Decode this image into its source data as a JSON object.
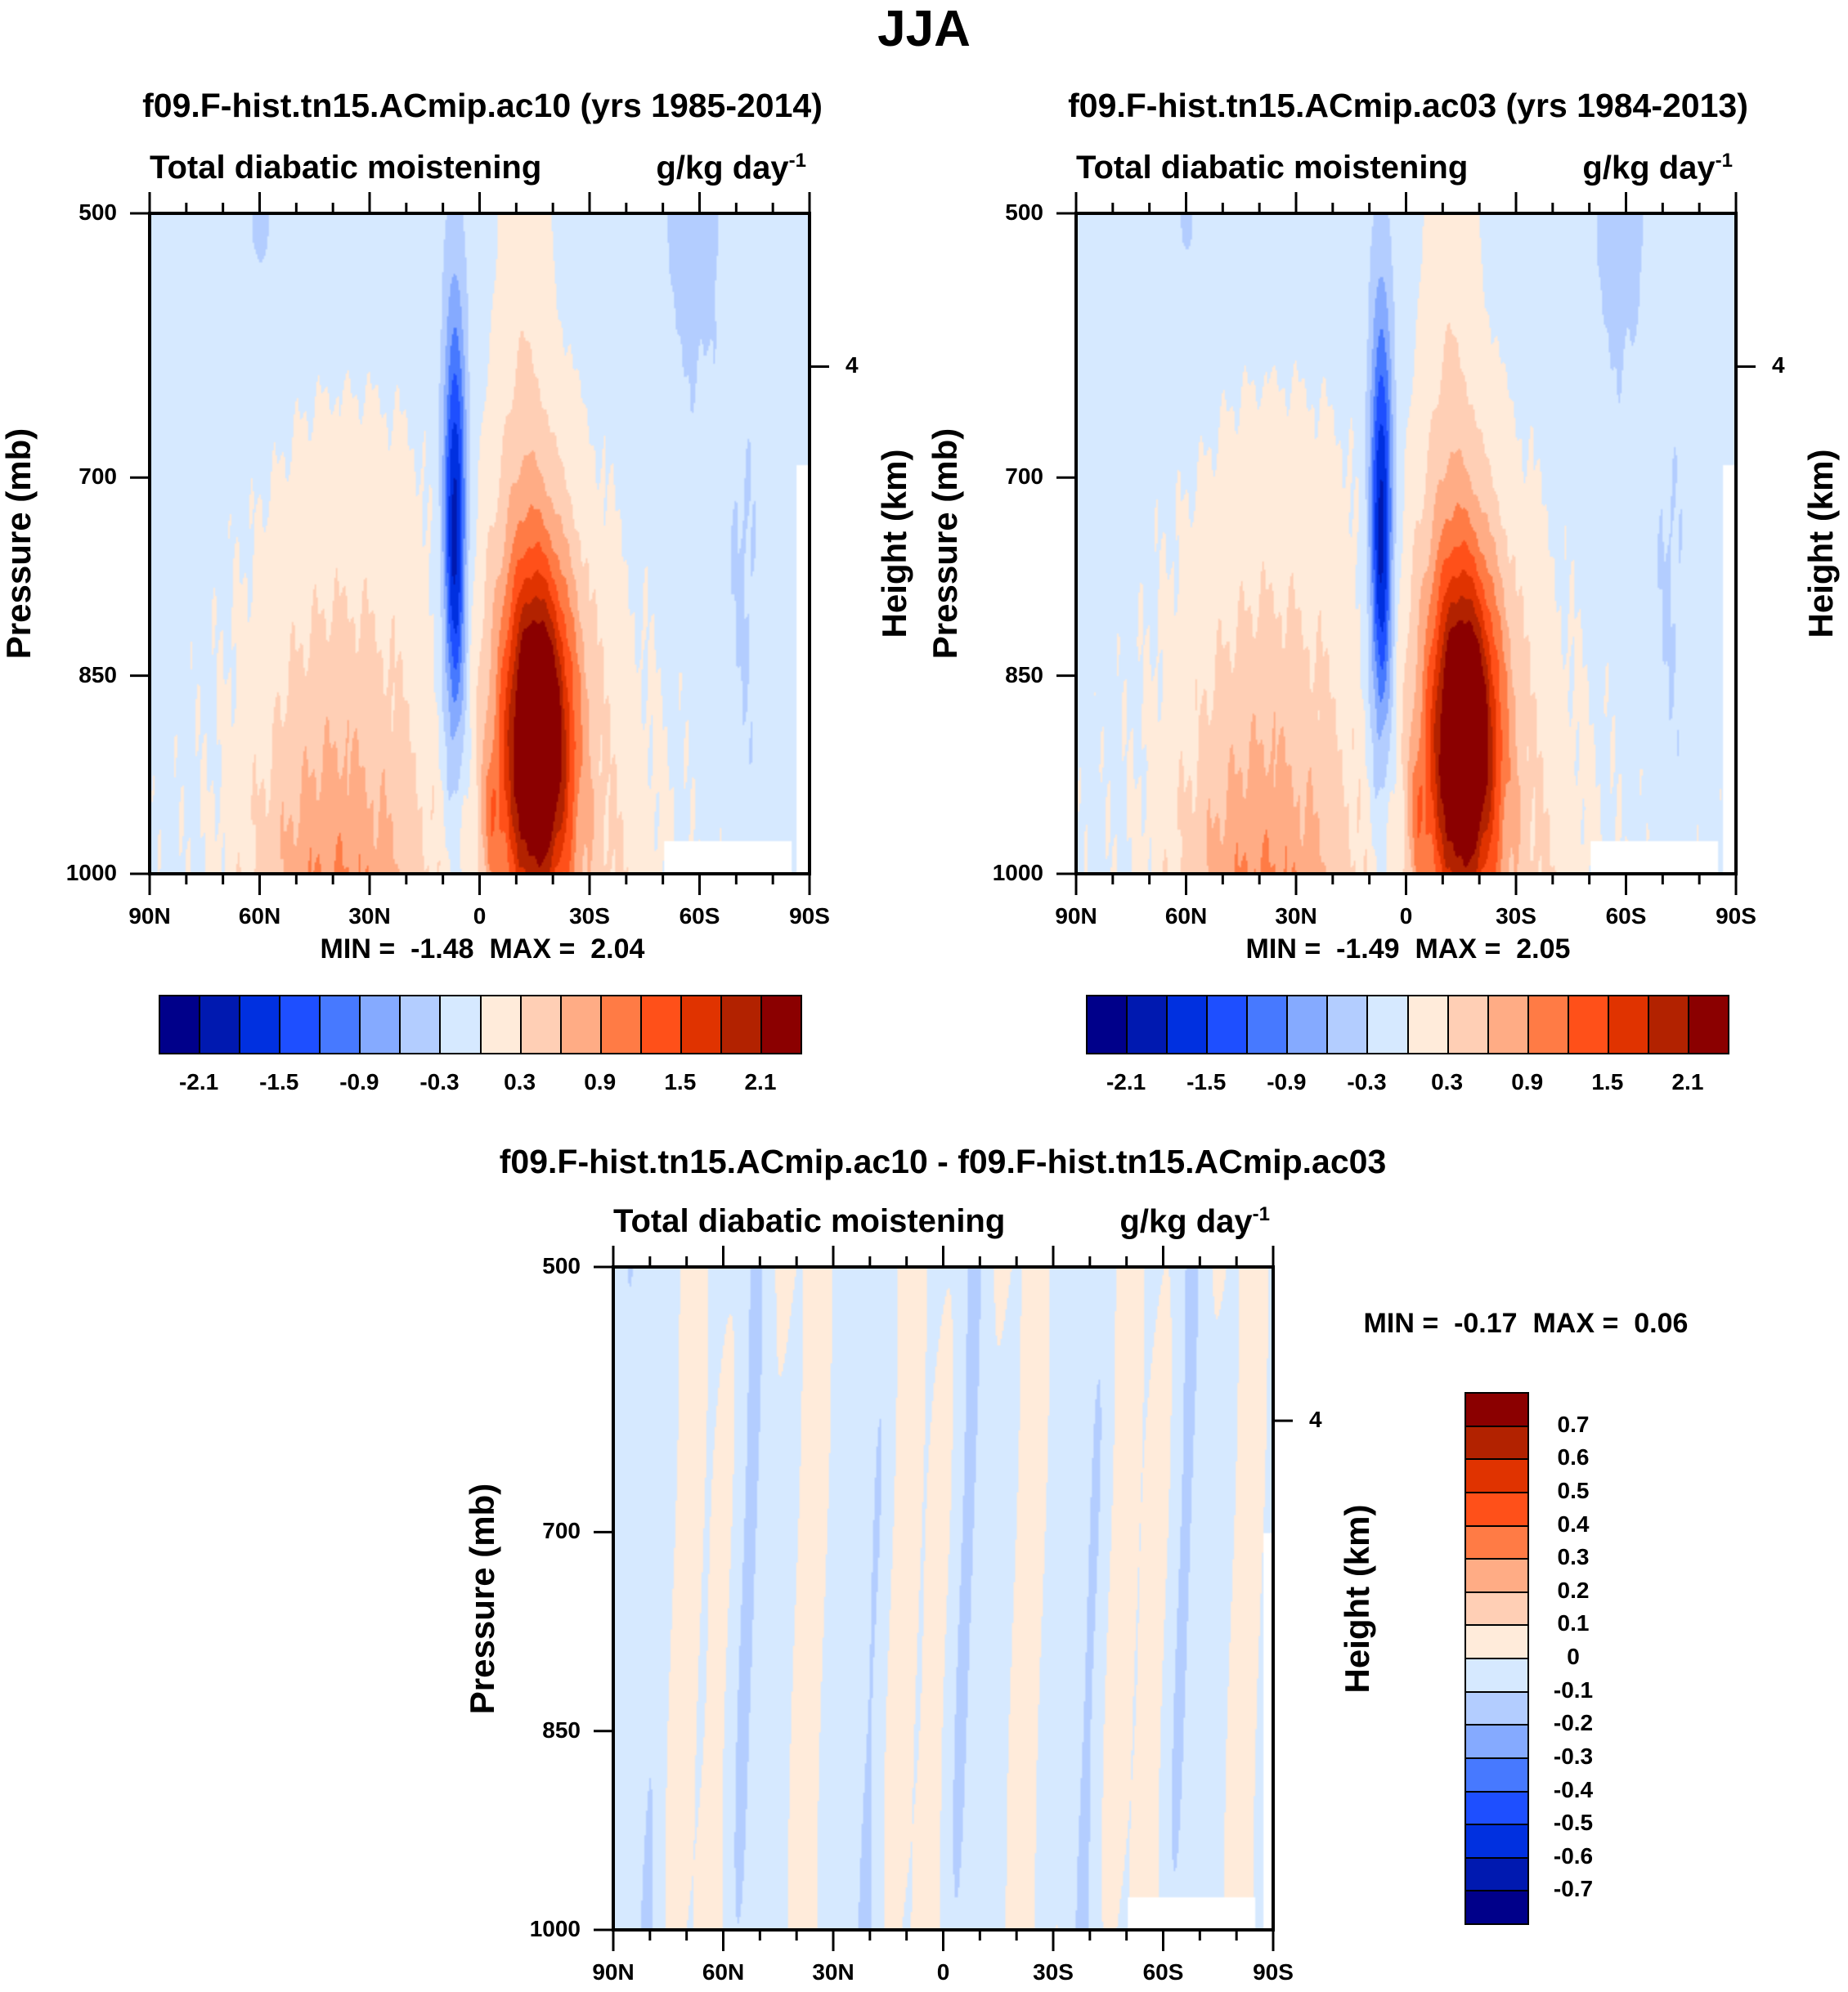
{
  "title": "JJA",
  "chart_data": [
    {
      "type": "heatmap",
      "title": "f09.F-hist.tn15.ACmip.ac10 (yrs 1985-2014)",
      "subtitle": "Total diabatic moistening",
      "units": "g/kg day",
      "units_exp": "-1",
      "ylabel": "Pressure (mb)",
      "ylabel_right": "Height (km)",
      "xticks": [
        "90N",
        "60N",
        "30N",
        "0",
        "30S",
        "60S",
        "90S"
      ],
      "xlim": [
        90,
        -90
      ],
      "yticks": [
        "500",
        "700",
        "850",
        "1000"
      ],
      "ylim": [
        500,
        1000
      ],
      "right_ticks": [
        "4"
      ],
      "min_label": "MIN =",
      "min": "-1.48",
      "max_label": "MAX =",
      "max": "2.04",
      "levels": [
        -2.1,
        -1.8,
        -1.5,
        -1.2,
        -0.9,
        -0.6,
        -0.3,
        0,
        0.3,
        0.6,
        0.9,
        1.2,
        1.5,
        1.8,
        2.1
      ],
      "colorbar_labels": [
        "-2.1",
        "-1.5",
        "-0.9",
        "-0.3",
        "0.3",
        "0.9",
        "1.5",
        "2.1"
      ],
      "colorbar_orientation": "horizontal"
    },
    {
      "type": "heatmap",
      "title": "f09.F-hist.tn15.ACmip.ac03 (yrs 1984-2013)",
      "subtitle": "Total diabatic moistening",
      "units": "g/kg day",
      "units_exp": "-1",
      "ylabel": "Pressure (mb)",
      "ylabel_right": "Height (km)",
      "xticks": [
        "90N",
        "60N",
        "30N",
        "0",
        "30S",
        "60S",
        "90S"
      ],
      "xlim": [
        90,
        -90
      ],
      "yticks": [
        "500",
        "700",
        "850",
        "1000"
      ],
      "ylim": [
        500,
        1000
      ],
      "right_ticks": [
        "4"
      ],
      "min_label": "MIN =",
      "min": "-1.49",
      "max_label": "MAX =",
      "max": "2.05",
      "levels": [
        -2.1,
        -1.8,
        -1.5,
        -1.2,
        -0.9,
        -0.6,
        -0.3,
        0,
        0.3,
        0.6,
        0.9,
        1.2,
        1.5,
        1.8,
        2.1
      ],
      "colorbar_labels": [
        "-2.1",
        "-1.5",
        "-0.9",
        "-0.3",
        "0.3",
        "0.9",
        "1.5",
        "2.1"
      ],
      "colorbar_orientation": "horizontal"
    },
    {
      "type": "heatmap",
      "title": "f09.F-hist.tn15.ACmip.ac10 - f09.F-hist.tn15.ACmip.ac03",
      "subtitle": "Total diabatic moistening",
      "units": "g/kg day",
      "units_exp": "-1",
      "ylabel": "Pressure (mb)",
      "ylabel_right": "Height (km)",
      "xticks": [
        "90N",
        "60N",
        "30N",
        "0",
        "30S",
        "60S",
        "90S"
      ],
      "xlim": [
        90,
        -90
      ],
      "yticks": [
        "500",
        "700",
        "850",
        "1000"
      ],
      "ylim": [
        500,
        1000
      ],
      "right_ticks": [
        "4"
      ],
      "min_label": "MIN =",
      "min": "-0.17",
      "max_label": "MAX =",
      "max": "0.06",
      "levels": [
        -0.7,
        -0.6,
        -0.5,
        -0.4,
        -0.3,
        -0.2,
        -0.1,
        0,
        0.1,
        0.2,
        0.3,
        0.4,
        0.5,
        0.6,
        0.7
      ],
      "colorbar_labels": [
        "0.7",
        "0.6",
        "0.5",
        "0.4",
        "0.3",
        "0.2",
        "0.1",
        "0",
        "-0.1",
        "-0.2",
        "-0.3",
        "-0.4",
        "-0.5",
        "-0.6",
        "-0.7"
      ],
      "colorbar_orientation": "vertical"
    }
  ],
  "colors": [
    "#00008A",
    "#0019B0",
    "#0030E0",
    "#1E4FFF",
    "#4779FF",
    "#85AAFF",
    "#B3CDFF",
    "#D6E9FF",
    "#FFEBDA",
    "#FFCFB5",
    "#FFAC85",
    "#FF7B45",
    "#FF5019",
    "#E03300",
    "#B22200",
    "#8B0000"
  ]
}
